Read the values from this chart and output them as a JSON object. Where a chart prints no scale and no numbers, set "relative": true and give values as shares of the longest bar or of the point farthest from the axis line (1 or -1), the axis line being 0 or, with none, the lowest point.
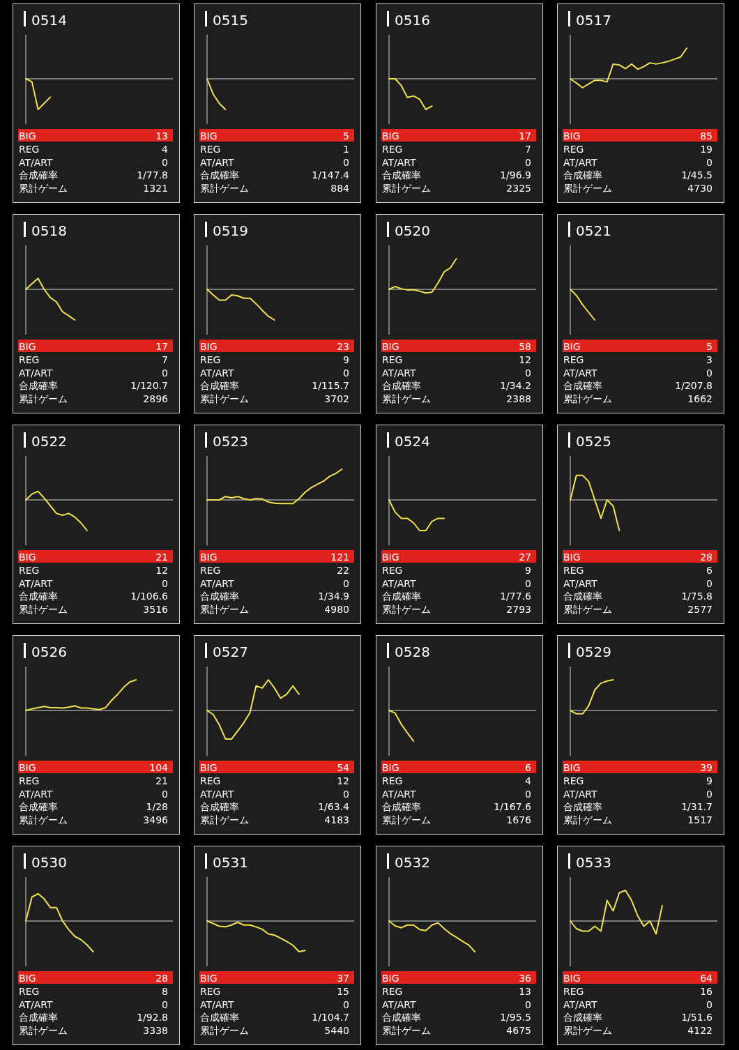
{
  "chart_data": [
    {
      "type": "line",
      "title": "0514",
      "relative": true,
      "categories": [
        null,
        null,
        null,
        null,
        null,
        null,
        null,
        null,
        null,
        null,
        null,
        null,
        null,
        null,
        null,
        null,
        null,
        null,
        null,
        null,
        null,
        null,
        null,
        null,
        null
      ],
      "series": [
        {
          "color": "#f2e34a",
          "values": [
            0,
            -0.1,
            -1,
            -0.8,
            -0.6,
            null,
            null,
            null,
            null,
            null,
            null,
            null,
            null,
            null,
            null,
            null,
            null,
            null,
            null,
            null,
            null,
            null,
            null,
            null,
            null
          ]
        }
      ],
      "annotations": [
        "BIG",
        "13",
        "REG",
        "4",
        "AT/ART",
        "0",
        "合成確率",
        "1/77.8",
        "累計ゲーム",
        "1321"
      ]
    },
    {
      "type": "line",
      "title": "0515",
      "relative": true,
      "categories": [
        null,
        null,
        null,
        null,
        null,
        null,
        null,
        null,
        null,
        null,
        null,
        null,
        null,
        null,
        null,
        null,
        null,
        null,
        null,
        null,
        null,
        null,
        null,
        null,
        null
      ],
      "series": [
        {
          "color": "#f2e34a",
          "values": [
            0,
            -0.5,
            -0.8,
            -1,
            null,
            null,
            null,
            null,
            null,
            null,
            null,
            null,
            null,
            null,
            null,
            null,
            null,
            null,
            null,
            null,
            null,
            null,
            null,
            null,
            null
          ]
        }
      ],
      "annotations": [
        "BIG",
        "5",
        "REG",
        "1",
        "AT/ART",
        "0",
        "合成確率",
        "1/147.4",
        "累計ゲーム",
        "884"
      ]
    },
    {
      "type": "line",
      "title": "0516",
      "relative": true,
      "categories": [
        null,
        null,
        null,
        null,
        null,
        null,
        null,
        null,
        null,
        null,
        null,
        null,
        null,
        null,
        null,
        null,
        null,
        null,
        null,
        null,
        null,
        null,
        null,
        null,
        null
      ],
      "series": [
        {
          "color": "#f2e34a",
          "values": [
            0,
            0,
            -0.22,
            -0.61,
            -0.56,
            -0.67,
            -1,
            -0.89,
            null,
            null,
            null,
            null,
            null,
            null,
            null,
            null,
            null,
            null,
            null,
            null,
            null,
            null,
            null,
            null,
            null
          ]
        }
      ],
      "annotations": [
        "BIG",
        "17",
        "REG",
        "7",
        "AT/ART",
        "0",
        "合成確率",
        "1/96.9",
        "累計ゲーム",
        "2325"
      ]
    },
    {
      "type": "line",
      "title": "0517",
      "relative": true,
      "categories": [
        null,
        null,
        null,
        null,
        null,
        null,
        null,
        null,
        null,
        null,
        null,
        null,
        null,
        null,
        null,
        null,
        null,
        null,
        null,
        null,
        null,
        null,
        null,
        null,
        null
      ],
      "series": [
        {
          "color": "#f2e34a",
          "values": [
            0,
            -0.14,
            -0.29,
            -0.17,
            -0.05,
            -0.05,
            -0.1,
            0.48,
            0.45,
            0.33,
            0.48,
            0.31,
            0.4,
            0.52,
            0.48,
            0.52,
            0.57,
            0.64,
            0.71,
            1,
            null,
            null,
            null,
            null,
            null
          ]
        }
      ],
      "annotations": [
        "BIG",
        "85",
        "REG",
        "19",
        "AT/ART",
        "0",
        "合成確率",
        "1/45.5",
        "累計ゲーム",
        "4730"
      ]
    },
    {
      "type": "line",
      "title": "0518",
      "relative": true,
      "categories": [
        null,
        null,
        null,
        null,
        null,
        null,
        null,
        null,
        null,
        null,
        null,
        null,
        null,
        null,
        null,
        null,
        null,
        null,
        null,
        null,
        null,
        null,
        null,
        null,
        null
      ],
      "series": [
        {
          "color": "#f2e34a",
          "values": [
            0,
            0.18,
            0.36,
            0,
            -0.27,
            -0.41,
            -0.73,
            -0.86,
            -1,
            null,
            null,
            null,
            null,
            null,
            null,
            null,
            null,
            null,
            null,
            null,
            null,
            null,
            null,
            null,
            null
          ]
        }
      ],
      "annotations": [
        "BIG",
        "17",
        "REG",
        "7",
        "AT/ART",
        "0",
        "合成確率",
        "1/120.7",
        "累計ゲーム",
        "2896"
      ]
    },
    {
      "type": "line",
      "title": "0519",
      "relative": true,
      "categories": [
        null,
        null,
        null,
        null,
        null,
        null,
        null,
        null,
        null,
        null,
        null,
        null,
        null,
        null,
        null,
        null,
        null,
        null,
        null,
        null,
        null,
        null,
        null,
        null,
        null
      ],
      "series": [
        {
          "color": "#f2e34a",
          "values": [
            0,
            -0.18,
            -0.35,
            -0.35,
            -0.18,
            -0.21,
            -0.29,
            -0.29,
            -0.47,
            -0.68,
            -0.88,
            -1,
            null,
            null,
            null,
            null,
            null,
            null,
            null,
            null,
            null,
            null,
            null,
            null,
            null
          ]
        }
      ],
      "annotations": [
        "BIG",
        "23",
        "REG",
        "9",
        "AT/ART",
        "0",
        "合成確率",
        "1/115.7",
        "累計ゲーム",
        "3702"
      ]
    },
    {
      "type": "line",
      "title": "0520",
      "relative": true,
      "categories": [
        null,
        null,
        null,
        null,
        null,
        null,
        null,
        null,
        null,
        null,
        null,
        null,
        null,
        null,
        null,
        null,
        null,
        null,
        null,
        null,
        null,
        null,
        null,
        null,
        null
      ],
      "series": [
        {
          "color": "#f2e34a",
          "values": [
            0,
            0.09,
            0.02,
            -0.02,
            -0.01,
            -0.06,
            -0.12,
            -0.09,
            0.21,
            0.57,
            0.7,
            1,
            null,
            null,
            null,
            null,
            null,
            null,
            null,
            null,
            null,
            null,
            null,
            null,
            null
          ]
        }
      ],
      "annotations": [
        "BIG",
        "58",
        "REG",
        "12",
        "AT/ART",
        "0",
        "合成確率",
        "1/34.2",
        "累計ゲーム",
        "2388"
      ]
    },
    {
      "type": "line",
      "title": "0521",
      "relative": true,
      "categories": [
        null,
        null,
        null,
        null,
        null,
        null,
        null,
        null,
        null,
        null,
        null,
        null,
        null,
        null,
        null,
        null,
        null,
        null,
        null,
        null,
        null,
        null,
        null,
        null,
        null
      ],
      "series": [
        {
          "color": "#f2e34a",
          "values": [
            0,
            -0.2,
            -0.5,
            -0.75,
            -1,
            null,
            null,
            null,
            null,
            null,
            null,
            null,
            null,
            null,
            null,
            null,
            null,
            null,
            null,
            null,
            null,
            null,
            null,
            null,
            null
          ]
        }
      ],
      "annotations": [
        "BIG",
        "5",
        "REG",
        "3",
        "AT/ART",
        "0",
        "合成確率",
        "1/207.8",
        "累計ゲーム",
        "1662"
      ]
    },
    {
      "type": "line",
      "title": "0522",
      "relative": true,
      "categories": [
        null,
        null,
        null,
        null,
        null,
        null,
        null,
        null,
        null,
        null,
        null,
        null,
        null,
        null,
        null,
        null,
        null,
        null,
        null,
        null,
        null,
        null,
        null,
        null,
        null
      ],
      "series": [
        {
          "color": "#f2e34a",
          "values": [
            0,
            0.19,
            0.28,
            0.06,
            -0.19,
            -0.44,
            -0.5,
            -0.44,
            -0.56,
            -0.75,
            -1,
            null,
            null,
            null,
            null,
            null,
            null,
            null,
            null,
            null,
            null,
            null,
            null,
            null,
            null
          ]
        }
      ],
      "annotations": [
        "BIG",
        "21",
        "REG",
        "12",
        "AT/ART",
        "0",
        "合成確率",
        "1/106.6",
        "累計ゲーム",
        "3516"
      ]
    },
    {
      "type": "line",
      "title": "0523",
      "relative": true,
      "categories": [
        null,
        null,
        null,
        null,
        null,
        null,
        null,
        null,
        null,
        null,
        null,
        null,
        null,
        null,
        null,
        null,
        null,
        null,
        null,
        null,
        null,
        null,
        null,
        null,
        null
      ],
      "series": [
        {
          "color": "#f2e34a",
          "values": [
            0,
            0,
            0,
            0.11,
            0.07,
            0.11,
            0.04,
            0,
            0.04,
            0.03,
            -0.07,
            -0.11,
            -0.12,
            -0.12,
            -0.12,
            0.04,
            0.25,
            0.4,
            0.51,
            0.61,
            0.77,
            0.86,
            1,
            null,
            null
          ]
        }
      ],
      "annotations": [
        "BIG",
        "121",
        "REG",
        "22",
        "AT/ART",
        "0",
        "合成確率",
        "1/34.9",
        "累計ゲーム",
        "4980"
      ]
    },
    {
      "type": "line",
      "title": "0524",
      "relative": true,
      "categories": [
        null,
        null,
        null,
        null,
        null,
        null,
        null,
        null,
        null,
        null,
        null,
        null,
        null,
        null,
        null,
        null,
        null,
        null,
        null,
        null,
        null,
        null,
        null,
        null,
        null
      ],
      "series": [
        {
          "color": "#f2e34a",
          "values": [
            0,
            -0.4,
            -0.6,
            -0.6,
            -0.75,
            -1,
            -1,
            -0.7,
            -0.6,
            -0.6,
            null,
            null,
            null,
            null,
            null,
            null,
            null,
            null,
            null,
            null,
            null,
            null,
            null,
            null,
            null
          ]
        }
      ],
      "annotations": [
        "BIG",
        "27",
        "REG",
        "9",
        "AT/ART",
        "0",
        "合成確率",
        "1/77.6",
        "累計ゲーム",
        "2793"
      ]
    },
    {
      "type": "line",
      "title": "0525",
      "relative": true,
      "categories": [
        null,
        null,
        null,
        null,
        null,
        null,
        null,
        null,
        null,
        null,
        null,
        null,
        null,
        null,
        null,
        null,
        null,
        null,
        null,
        null,
        null,
        null,
        null,
        null,
        null
      ],
      "series": [
        {
          "color": "#f2e34a",
          "values": [
            0,
            0.8,
            0.8,
            0.6,
            0,
            -0.6,
            0,
            -0.2,
            -1,
            null,
            null,
            null,
            null,
            null,
            null,
            null,
            null,
            null,
            null,
            null,
            null,
            null,
            null,
            null,
            null
          ]
        }
      ],
      "annotations": [
        "BIG",
        "28",
        "REG",
        "6",
        "AT/ART",
        "0",
        "合成確率",
        "1/75.8",
        "累計ゲーム",
        "2577"
      ]
    },
    {
      "type": "line",
      "title": "0526",
      "relative": true,
      "categories": [
        null,
        null,
        null,
        null,
        null,
        null,
        null,
        null,
        null,
        null,
        null,
        null,
        null,
        null,
        null,
        null,
        null,
        null,
        null,
        null,
        null,
        null,
        null,
        null,
        null
      ],
      "series": [
        {
          "color": "#f2e34a",
          "values": [
            0,
            0.05,
            0.09,
            0.13,
            0.09,
            0.09,
            0.08,
            0.11,
            0.15,
            0.08,
            0.08,
            0.05,
            0.03,
            0.09,
            0.33,
            0.53,
            0.76,
            0.93,
            1,
            null,
            null,
            null,
            null,
            null,
            null
          ]
        }
      ],
      "annotations": [
        "BIG",
        "104",
        "REG",
        "21",
        "AT/ART",
        "0",
        "合成確率",
        "1/28",
        "累計ゲーム",
        "3496"
      ]
    },
    {
      "type": "line",
      "title": "0527",
      "relative": true,
      "categories": [
        null,
        null,
        null,
        null,
        null,
        null,
        null,
        null,
        null,
        null,
        null,
        null,
        null,
        null,
        null,
        null,
        null,
        null,
        null,
        null,
        null,
        null,
        null,
        null,
        null
      ],
      "series": [
        {
          "color": "#f2e34a",
          "values": [
            0,
            -0.13,
            -0.47,
            -0.93,
            -0.93,
            -0.67,
            -0.4,
            -0.07,
            0.8,
            0.73,
            1,
            0.73,
            0.4,
            0.53,
            0.8,
            0.53,
            null,
            null,
            null,
            null,
            null,
            null,
            null,
            null,
            null
          ]
        }
      ],
      "annotations": [
        "BIG",
        "54",
        "REG",
        "12",
        "AT/ART",
        "0",
        "合成確率",
        "1/63.4",
        "累計ゲーム",
        "4183"
      ]
    },
    {
      "type": "line",
      "title": "0528",
      "relative": true,
      "categories": [
        null,
        null,
        null,
        null,
        null,
        null,
        null,
        null,
        null,
        null,
        null,
        null,
        null,
        null,
        null,
        null,
        null,
        null,
        null,
        null,
        null,
        null,
        null,
        null,
        null
      ],
      "series": [
        {
          "color": "#f2e34a",
          "values": [
            0,
            -0.09,
            -0.45,
            -0.73,
            -1,
            null,
            null,
            null,
            null,
            null,
            null,
            null,
            null,
            null,
            null,
            null,
            null,
            null,
            null,
            null,
            null,
            null,
            null,
            null,
            null
          ]
        }
      ],
      "annotations": [
        "BIG",
        "6",
        "REG",
        "4",
        "AT/ART",
        "0",
        "合成確率",
        "1/167.6",
        "累計ゲーム",
        "1676"
      ]
    },
    {
      "type": "line",
      "title": "0529",
      "relative": true,
      "categories": [
        null,
        null,
        null,
        null,
        null,
        null,
        null,
        null,
        null,
        null,
        null,
        null,
        null,
        null,
        null,
        null,
        null,
        null,
        null,
        null,
        null,
        null,
        null,
        null,
        null
      ],
      "series": [
        {
          "color": "#f2e34a",
          "values": [
            0,
            -0.11,
            -0.11,
            0.15,
            0.67,
            0.89,
            0.96,
            1,
            null,
            null,
            null,
            null,
            null,
            null,
            null,
            null,
            null,
            null,
            null,
            null,
            null,
            null,
            null,
            null,
            null
          ]
        }
      ],
      "annotations": [
        "BIG",
        "39",
        "REG",
        "9",
        "AT/ART",
        "0",
        "合成確率",
        "1/31.7",
        "累計ゲーム",
        "1517"
      ]
    },
    {
      "type": "line",
      "title": "0530",
      "relative": true,
      "categories": [
        null,
        null,
        null,
        null,
        null,
        null,
        null,
        null,
        null,
        null,
        null,
        null,
        null,
        null,
        null,
        null,
        null,
        null,
        null,
        null,
        null,
        null,
        null,
        null,
        null
      ],
      "series": [
        {
          "color": "#f2e34a",
          "values": [
            0,
            0.78,
            0.89,
            0.72,
            0.44,
            0.44,
            0,
            -0.28,
            -0.5,
            -0.61,
            -0.78,
            -1,
            null,
            null,
            null,
            null,
            null,
            null,
            null,
            null,
            null,
            null,
            null,
            null,
            null
          ]
        }
      ],
      "annotations": [
        "BIG",
        "28",
        "REG",
        "8",
        "AT/ART",
        "0",
        "合成確率",
        "1/92.8",
        "累計ゲーム",
        "3338"
      ]
    },
    {
      "type": "line",
      "title": "0531",
      "relative": true,
      "categories": [
        null,
        null,
        null,
        null,
        null,
        null,
        null,
        null,
        null,
        null,
        null,
        null,
        null,
        null,
        null,
        null,
        null,
        null,
        null,
        null,
        null,
        null,
        null,
        null,
        null
      ],
      "series": [
        {
          "color": "#f2e34a",
          "values": [
            0,
            -0.08,
            -0.17,
            -0.19,
            -0.13,
            -0.04,
            -0.13,
            -0.13,
            -0.19,
            -0.27,
            -0.42,
            -0.46,
            -0.56,
            -0.67,
            -0.79,
            -1,
            -0.96,
            null,
            null,
            null,
            null,
            null,
            null,
            null,
            null
          ]
        }
      ],
      "annotations": [
        "BIG",
        "37",
        "REG",
        "15",
        "AT/ART",
        "0",
        "合成確率",
        "1/104.7",
        "累計ゲーム",
        "5440"
      ]
    },
    {
      "type": "line",
      "title": "0532",
      "relative": true,
      "categories": [
        null,
        null,
        null,
        null,
        null,
        null,
        null,
        null,
        null,
        null,
        null,
        null,
        null,
        null,
        null,
        null,
        null,
        null,
        null,
        null,
        null,
        null,
        null,
        null,
        null
      ],
      "series": [
        {
          "color": "#f2e34a",
          "values": [
            0,
            -0.16,
            -0.22,
            -0.13,
            -0.13,
            -0.28,
            -0.31,
            -0.13,
            -0.06,
            -0.25,
            -0.41,
            -0.53,
            -0.66,
            -0.78,
            -1,
            null,
            null,
            null,
            null,
            null,
            null,
            null,
            null,
            null,
            null
          ]
        }
      ],
      "annotations": [
        "BIG",
        "36",
        "REG",
        "13",
        "AT/ART",
        "0",
        "合成確率",
        "1/95.5",
        "累計ゲーム",
        "4675"
      ]
    },
    {
      "type": "line",
      "title": "0533",
      "relative": true,
      "categories": [
        null,
        null,
        null,
        null,
        null,
        null,
        null,
        null,
        null,
        null,
        null,
        null,
        null,
        null,
        null,
        null,
        null,
        null,
        null,
        null,
        null,
        null,
        null,
        null,
        null
      ],
      "series": [
        {
          "color": "#f2e34a",
          "values": [
            0,
            -0.25,
            -0.33,
            -0.33,
            -0.17,
            -0.33,
            0.67,
            0.33,
            0.92,
            1,
            0.67,
            0.17,
            -0.17,
            0,
            -0.42,
            0.5,
            null,
            null,
            null,
            null,
            null,
            null,
            null,
            null,
            null
          ]
        }
      ],
      "annotations": [
        "BIG",
        "64",
        "REG",
        "16",
        "AT/ART",
        "0",
        "合成確率",
        "1/51.6",
        "累計ゲーム",
        "4122"
      ]
    }
  ]
}
